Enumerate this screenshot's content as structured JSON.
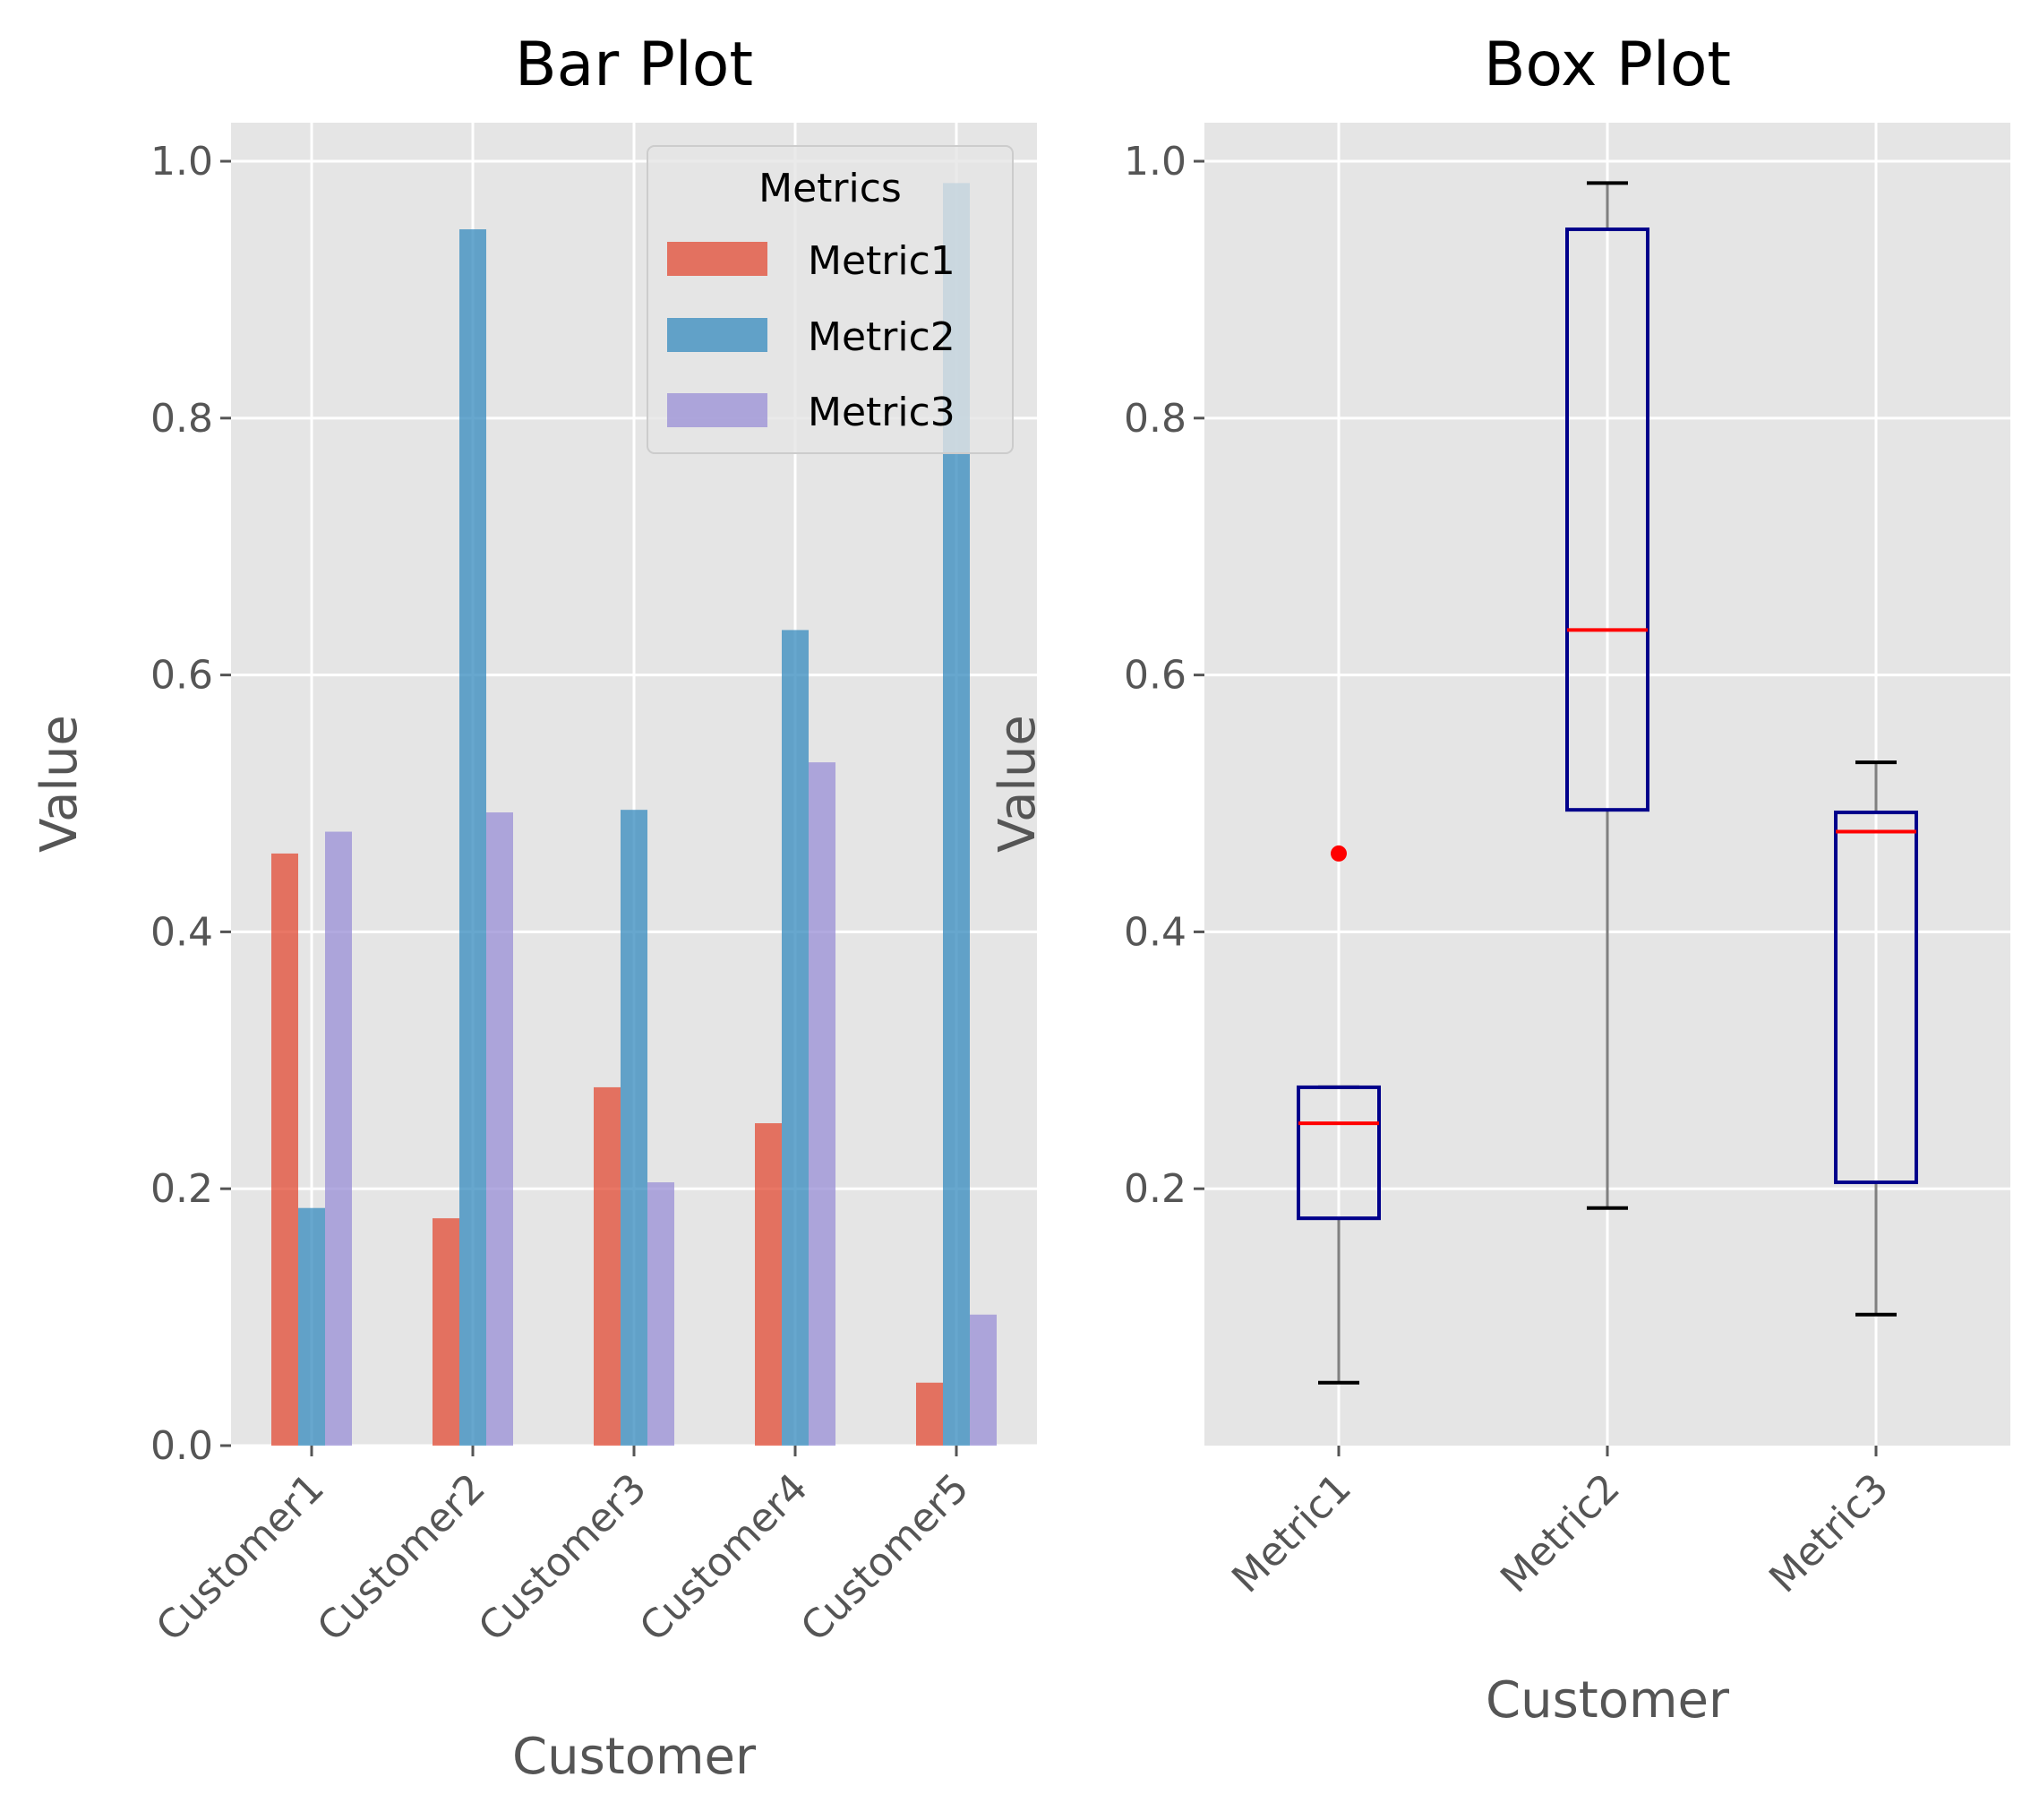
{
  "colors": {
    "panel_bg": "#E5E5E5",
    "grid": "#FFFFFF",
    "Metric1": "#E24A33",
    "Metric2": "#348ABD",
    "Metric3": "#988ED5",
    "box": "#00008B",
    "median": "#FF0000",
    "whisker": "#808080",
    "cap": "#000000",
    "flier": "#FF0000"
  },
  "chart_data": [
    {
      "type": "bar",
      "title": "Bar Plot",
      "xlabel": "Customer",
      "ylabel": "Value",
      "categories": [
        "Customer1",
        "Customer2",
        "Customer3",
        "Customer4",
        "Customer5"
      ],
      "series": [
        {
          "name": "Metric1",
          "values": [
            0.461,
            0.177,
            0.279,
            0.251,
            0.049
          ]
        },
        {
          "name": "Metric2",
          "values": [
            0.185,
            0.947,
            0.495,
            0.635,
            0.983
          ]
        },
        {
          "name": "Metric3",
          "values": [
            0.478,
            0.493,
            0.205,
            0.532,
            0.102
          ]
        }
      ],
      "ylim": [
        0,
        1.03
      ],
      "yticks": [
        "0.0",
        "0.2",
        "0.4",
        "0.6",
        "0.8",
        "1.0"
      ],
      "grid": true,
      "legend": {
        "title": "Metrics",
        "position": "top-right"
      }
    },
    {
      "type": "box",
      "title": "Box Plot",
      "xlabel": "Customer",
      "ylabel": "Value",
      "categories": [
        "Metric1",
        "Metric2",
        "Metric3"
      ],
      "boxes": [
        {
          "name": "Metric1",
          "whisker_low": 0.049,
          "q1": 0.177,
          "median": 0.251,
          "q3": 0.279,
          "whisker_high": 0.279,
          "outliers": [
            0.461
          ]
        },
        {
          "name": "Metric2",
          "whisker_low": 0.185,
          "q1": 0.495,
          "median": 0.635,
          "q3": 0.947,
          "whisker_high": 0.983,
          "outliers": []
        },
        {
          "name": "Metric3",
          "whisker_low": 0.102,
          "q1": 0.205,
          "median": 0.478,
          "q3": 0.493,
          "whisker_high": 0.532,
          "outliers": []
        }
      ],
      "ylim": [
        0.0,
        1.03
      ],
      "yticks": [
        "0.2",
        "0.4",
        "0.6",
        "0.8",
        "1.0"
      ],
      "grid": true
    }
  ]
}
